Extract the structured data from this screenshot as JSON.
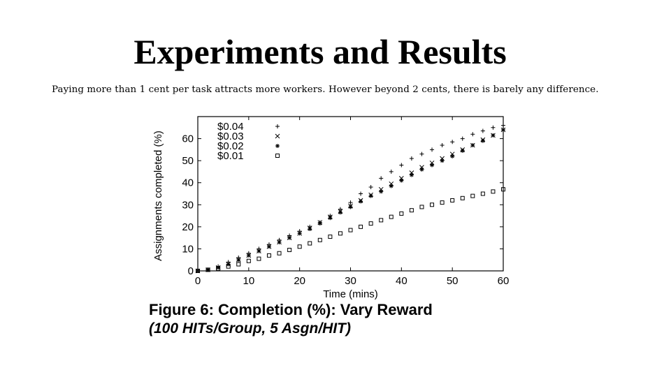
{
  "slide": {
    "title": "Experiments and Results",
    "subtitle": "Paying more than 1 cent per task attracts more workers. However beyond 2  cents, there is barely any difference."
  },
  "figure": {
    "caption": "Figure 6:  Completion (%):  Vary Reward",
    "subcaption": "(100 HITs/Group, 5 Asgn/HIT)"
  },
  "chart_data": {
    "type": "scatter",
    "xlabel": "Time (mins)",
    "ylabel": "Assignments completed (%)",
    "xlim": [
      0,
      60
    ],
    "ylim": [
      0,
      70
    ],
    "xticks": [
      0,
      10,
      20,
      30,
      40,
      50,
      60
    ],
    "yticks": [
      0,
      10,
      20,
      30,
      40,
      50,
      60
    ],
    "grid": false,
    "legend_position": "top-left",
    "series": [
      {
        "name": "$0.04",
        "marker": "plus",
        "x": [
          0,
          2,
          4,
          6,
          8,
          10,
          12,
          14,
          16,
          18,
          20,
          22,
          24,
          26,
          28,
          30,
          32,
          34,
          36,
          38,
          40,
          42,
          44,
          46,
          48,
          50,
          52,
          54,
          56,
          58,
          60
        ],
        "y": [
          0,
          0.5,
          2,
          4,
          6,
          8,
          10,
          12,
          14,
          16,
          18,
          20,
          22,
          25,
          28,
          31,
          35,
          38,
          42,
          45,
          48,
          51,
          53,
          55,
          57,
          58.5,
          60,
          62,
          63.5,
          65,
          66
        ]
      },
      {
        "name": "$0.03",
        "marker": "x",
        "x": [
          0,
          2,
          4,
          6,
          8,
          10,
          12,
          14,
          16,
          18,
          20,
          22,
          24,
          26,
          28,
          30,
          32,
          34,
          36,
          38,
          40,
          42,
          44,
          46,
          48,
          50,
          52,
          54,
          56,
          58,
          60
        ],
        "y": [
          0,
          0.5,
          1.5,
          3,
          5,
          7,
          9,
          11,
          13,
          15,
          17,
          19.5,
          22,
          24.5,
          27,
          29.5,
          32,
          34.5,
          37,
          39.5,
          42,
          44.5,
          47,
          49,
          51,
          53,
          55,
          57,
          59.5,
          61.5,
          64
        ]
      },
      {
        "name": "$0.02",
        "marker": "star",
        "x": [
          0,
          2,
          4,
          6,
          8,
          10,
          12,
          14,
          16,
          18,
          20,
          22,
          24,
          26,
          28,
          30,
          32,
          34,
          36,
          38,
          40,
          42,
          44,
          46,
          48,
          50,
          52,
          54,
          56,
          58,
          60
        ],
        "y": [
          0,
          0.5,
          1.5,
          3,
          5,
          7,
          9,
          11,
          13,
          15,
          17,
          19,
          21.5,
          24,
          26.5,
          29,
          31.5,
          34,
          36,
          38.5,
          41,
          43.5,
          46,
          48,
          50,
          52,
          54.5,
          57,
          59,
          61.5,
          64
        ]
      },
      {
        "name": "$0.01",
        "marker": "square",
        "x": [
          0,
          2,
          4,
          6,
          8,
          10,
          12,
          14,
          16,
          18,
          20,
          22,
          24,
          26,
          28,
          30,
          32,
          34,
          36,
          38,
          40,
          42,
          44,
          46,
          48,
          50,
          52,
          54,
          56,
          58,
          60
        ],
        "y": [
          0,
          0.5,
          1,
          2,
          3,
          4.5,
          5.5,
          7,
          8,
          9.5,
          11,
          12.5,
          14,
          15.5,
          17,
          18.5,
          20,
          21.5,
          23,
          24.5,
          26,
          27.5,
          29,
          30,
          31,
          32,
          33,
          34,
          35,
          36,
          37
        ]
      }
    ]
  }
}
